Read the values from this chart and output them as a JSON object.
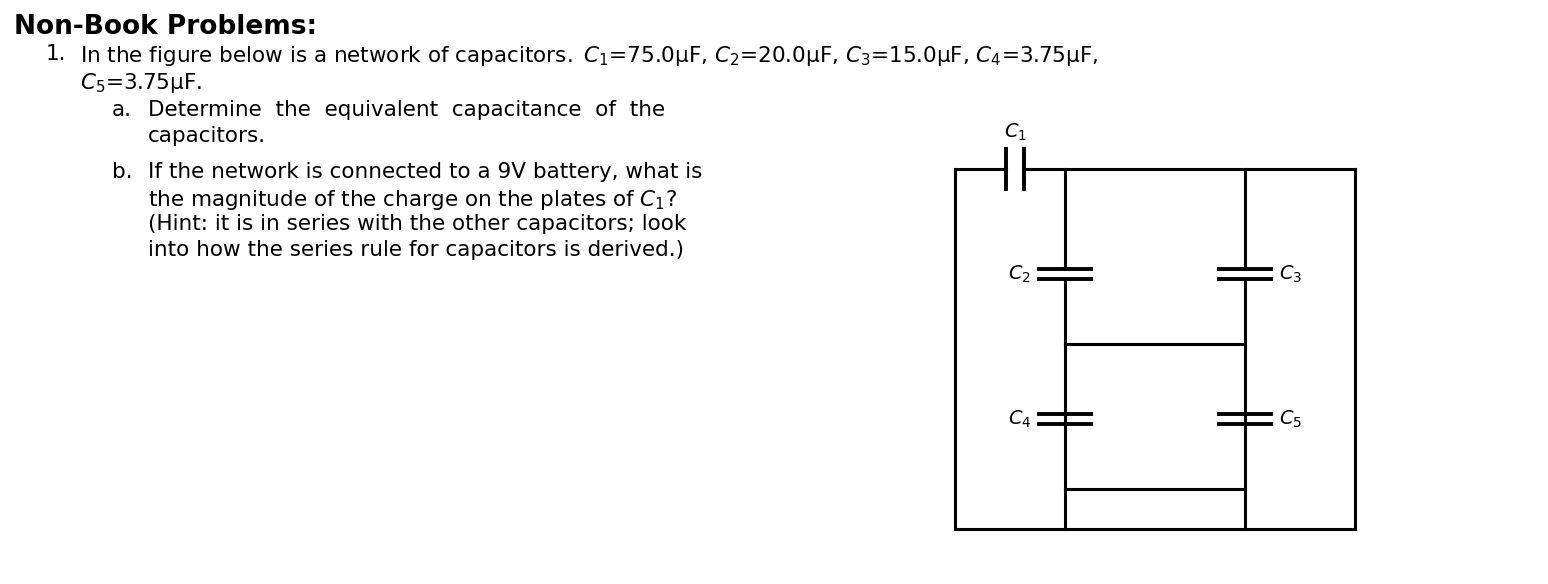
{
  "title": "Non-Book Problems:",
  "problem_number": "1.",
  "line1": "In the figure below is a network of capacitors. $C_1$=75.0μF, $C_2$=20.0μF, $C_3$=15.0μF, $C_4$=3.75μF,",
  "line2": "$C_5$=3.75μF.",
  "sub_a_label": "a.",
  "sub_a_line1": "Determine  the  equivalent  capacitance  of  the",
  "sub_a_line2": "capacitors.",
  "sub_b_label": "b.",
  "sub_b_line1": "If the network is connected to a 9V battery, what is",
  "sub_b_line2": "the magnitude of the charge on the plates of $C_1$?",
  "sub_b_line3": "(Hint: it is in series with the other capacitors; look",
  "sub_b_line4": "into how the series rule for capacitors is derived.)",
  "background_color": "#ffffff",
  "text_color": "#000000",
  "circuit_labels": [
    "$C_1$",
    "$C_2$",
    "$C_3$",
    "$C_4$",
    "$C_5$"
  ]
}
